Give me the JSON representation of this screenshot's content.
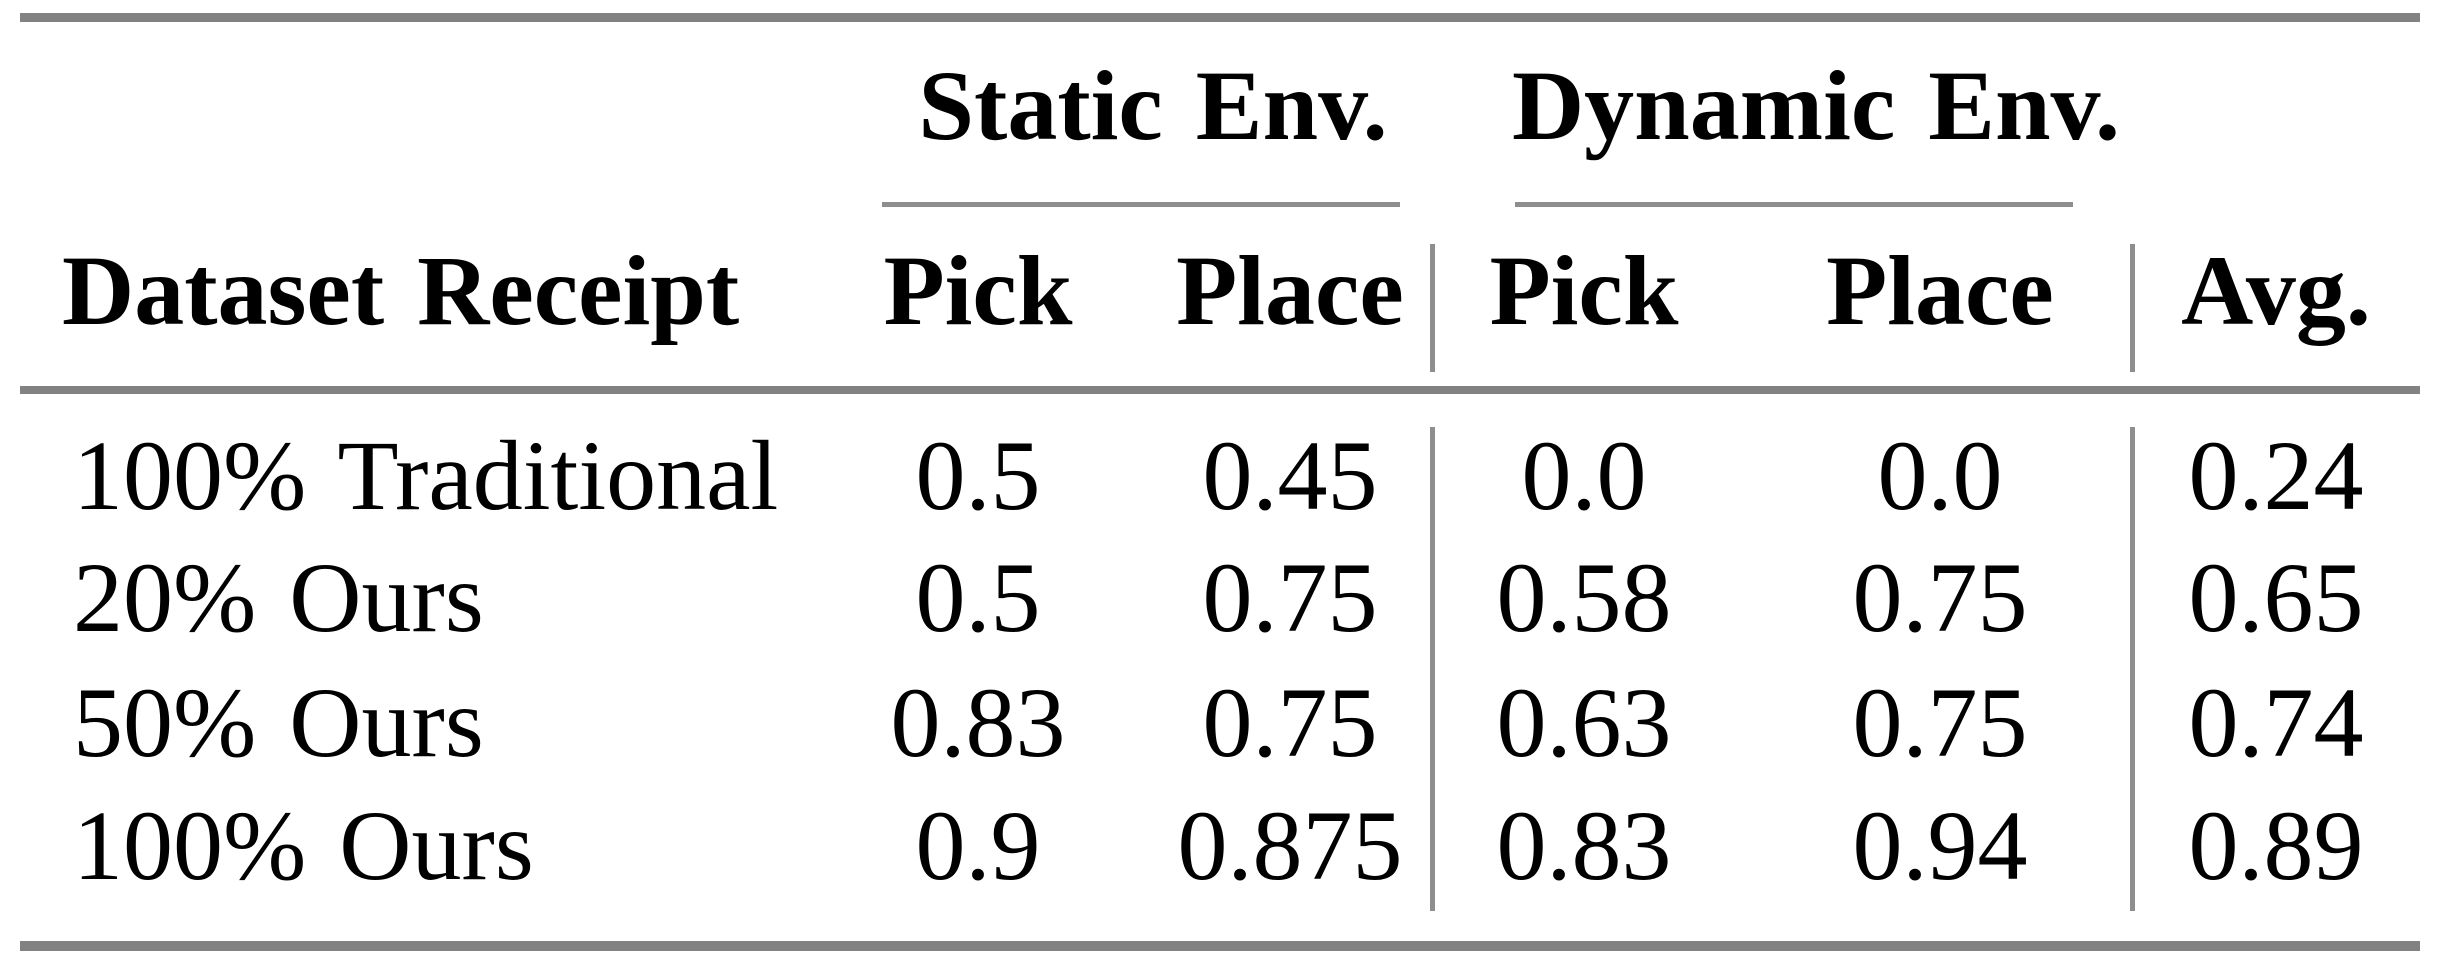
{
  "table": {
    "spanners": {
      "static": "Static Env.",
      "dynamic": "Dynamic Env."
    },
    "headers": {
      "row_label": "Dataset Receipt",
      "static_pick": "Pick",
      "static_place": "Place",
      "dynamic_pick": "Pick",
      "dynamic_place": "Place",
      "avg": "Avg."
    },
    "rows": [
      {
        "label": "100% Traditional",
        "static_pick": "0.5",
        "static_place": "0.45",
        "dynamic_pick": "0.0",
        "dynamic_place": "0.0",
        "avg": "0.24"
      },
      {
        "label": "20% Ours",
        "static_pick": "0.5",
        "static_place": "0.75",
        "dynamic_pick": "0.58",
        "dynamic_place": "0.75",
        "avg": "0.65"
      },
      {
        "label": "50% Ours",
        "static_pick": "0.83",
        "static_place": "0.75",
        "dynamic_pick": "0.63",
        "dynamic_place": "0.75",
        "avg": "0.74"
      },
      {
        "label": "100% Ours",
        "static_pick": "0.9",
        "static_place": "0.875",
        "dynamic_pick": "0.83",
        "dynamic_place": "0.94",
        "avg": "0.89"
      }
    ]
  },
  "colors": {
    "text": "#000000",
    "background": "#ffffff",
    "rule_thick": "#828282",
    "rule_thin": "#8e8e8e"
  },
  "chart_data": {
    "type": "table",
    "column_groups": [
      {
        "label": "Static Env.",
        "columns": [
          "Pick",
          "Place"
        ]
      },
      {
        "label": "Dynamic Env.",
        "columns": [
          "Pick",
          "Place"
        ]
      }
    ],
    "columns": [
      "Dataset Receipt",
      "Static Env. Pick",
      "Static Env. Place",
      "Dynamic Env. Pick",
      "Dynamic Env. Place",
      "Avg."
    ],
    "rows": [
      [
        "100% Traditional",
        0.5,
        0.45,
        0.0,
        0.0,
        0.24
      ],
      [
        "20% Ours",
        0.5,
        0.75,
        0.58,
        0.75,
        0.65
      ],
      [
        "50% Ours",
        0.83,
        0.75,
        0.63,
        0.75,
        0.74
      ],
      [
        "100% Ours",
        0.9,
        0.875,
        0.83,
        0.94,
        0.89
      ]
    ]
  }
}
